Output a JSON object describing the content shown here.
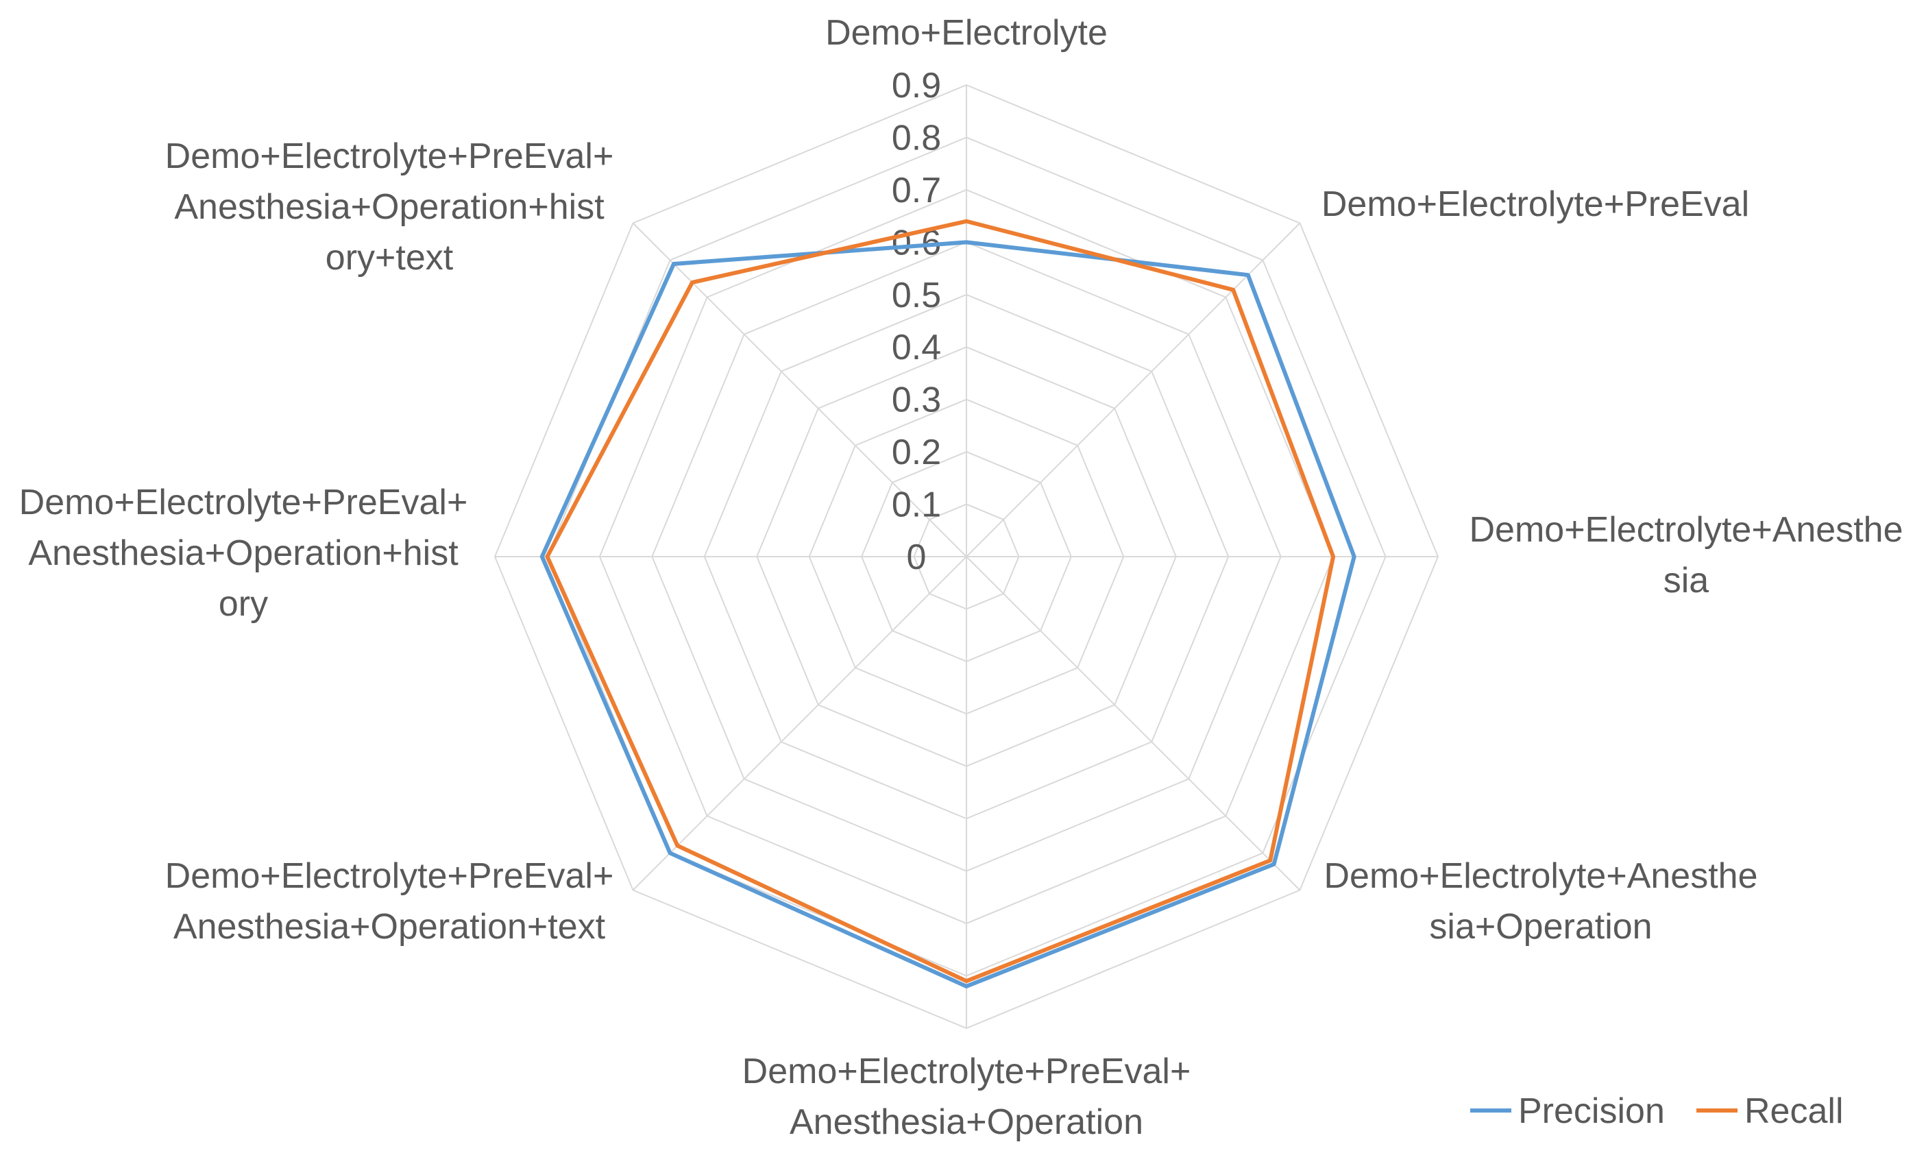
{
  "chart_data": {
    "type": "radar",
    "categories": [
      [
        "Demo+Electrolyte"
      ],
      [
        "Demo+Electrolyte+PreEval"
      ],
      [
        "Demo+Electrolyte+Anesthe",
        "sia"
      ],
      [
        "Demo+Electrolyte+Anesthe",
        "sia+Operation"
      ],
      [
        "Demo+Electrolyte+PreEval+",
        "Anesthesia+Operation"
      ],
      [
        "Demo+Electrolyte+PreEval+",
        "Anesthesia+Operation+text"
      ],
      [
        "Demo+Electrolyte+PreEval+",
        "Anesthesia+Operation+hist",
        "ory"
      ],
      [
        "Demo+Electrolyte+PreEval+",
        "Anesthesia+Operation+hist",
        "ory+text"
      ]
    ],
    "ticks": [
      "0",
      "0.1",
      "0.2",
      "0.3",
      "0.4",
      "0.5",
      "0.6",
      "0.7",
      "0.8",
      "0.9"
    ],
    "rmax": 0.9,
    "series": [
      {
        "name": "Precision",
        "color": "#5B9BD5",
        "values": [
          0.6,
          0.76,
          0.74,
          0.83,
          0.82,
          0.8,
          0.81,
          0.79
        ]
      },
      {
        "name": "Recall",
        "color": "#ED7D31",
        "values": [
          0.64,
          0.72,
          0.7,
          0.82,
          0.81,
          0.78,
          0.8,
          0.74
        ]
      }
    ],
    "legend_position": "bottom-right",
    "grid": true
  }
}
